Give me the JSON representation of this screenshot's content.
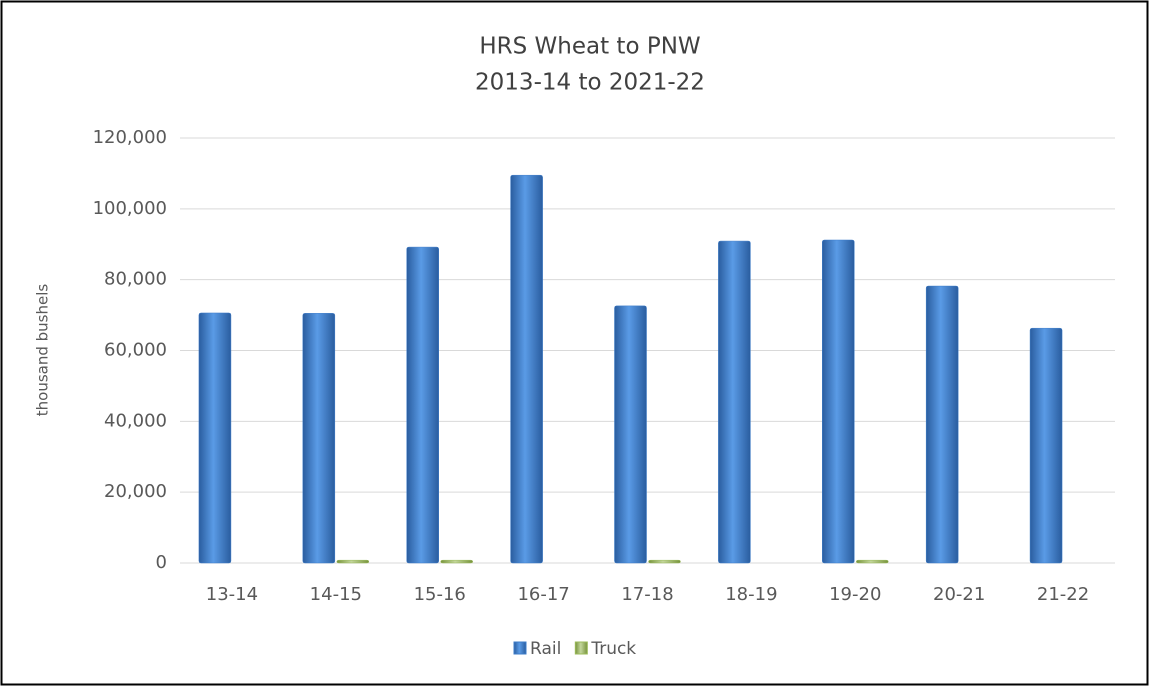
{
  "chart_data": {
    "type": "bar",
    "title": "HRS Wheat to PNW",
    "subtitle": "2013-14 to 2021-22",
    "y_label": "thousand bushels",
    "categories": [
      "13-14",
      "14-15",
      "15-16",
      "16-17",
      "17-18",
      "18-19",
      "19-20",
      "20-21",
      "21-22"
    ],
    "series": [
      {
        "name": "Rail",
        "color": "#3d7cc9",
        "values": [
          70600,
          70500,
          89200,
          109500,
          72600,
          90900,
          91200,
          78200,
          66300
        ]
      },
      {
        "name": "Truck",
        "color": "#9bbb59",
        "values": [
          0,
          800,
          800,
          0,
          800,
          0,
          800,
          0,
          0
        ]
      }
    ],
    "ylim": [
      0,
      120000
    ],
    "yticks": [
      0,
      {
        "value": 20000,
        "label": "20,000"
      },
      {
        "value": 40000,
        "label": "40,000"
      },
      {
        "value": 60000,
        "label": "60,000"
      },
      {
        "value": 80000,
        "label": "80,000"
      },
      {
        "value": 100000,
        "label": "100,000"
      },
      {
        "value": 120000,
        "label": "120,000"
      }
    ],
    "grid": true,
    "legend": "bottom"
  }
}
